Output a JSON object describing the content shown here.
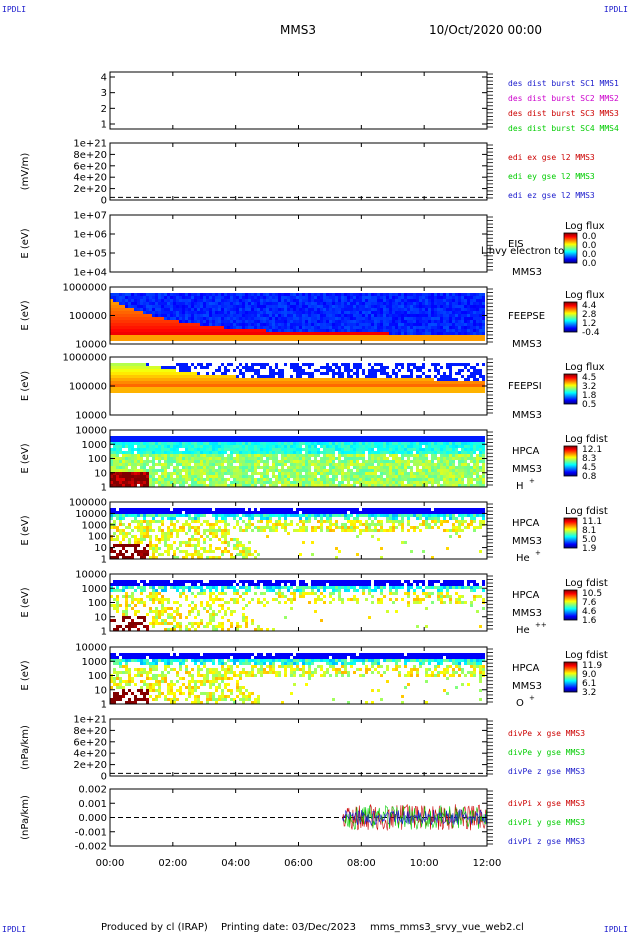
{
  "header": {
    "corner_logo": "IPDLI",
    "spacecraft": "MMS3",
    "date": "10/Oct/2020 00:00"
  },
  "footer": {
    "produced_by": "Produced by cl (IRAP)",
    "printing_date": "Printing date: 03/Dec/2023",
    "script": "mms_mms3_srvy_vue_web2.cl"
  },
  "colors": {
    "blue": "#1a1acc",
    "magenta": "#cc00cc",
    "red": "#cc0000",
    "green": "#00cc00",
    "dashed": "#000000"
  },
  "chart_data": [
    {
      "type": "line",
      "title": "",
      "ylabel": "",
      "y_ticks": [
        "4",
        "3",
        "2",
        "1"
      ],
      "ylim": [
        0.5,
        4.5
      ],
      "legend_placement": "right",
      "series": [
        {
          "name": "des dist burst SC1 MMS1",
          "color": "#1a1acc",
          "values": []
        },
        {
          "name": "des dist burst SC2 MMS2",
          "color": "#cc00cc",
          "values": []
        },
        {
          "name": "des dist burst SC3 MMS3",
          "color": "#cc0000",
          "values": []
        },
        {
          "name": "des dist burst SC4 MMS4",
          "color": "#00cc00",
          "values": []
        }
      ]
    },
    {
      "type": "line",
      "ylabel": "(mV/m)",
      "y_ticks": [
        "1e+21",
        "8e+20",
        "6e+20",
        "4e+20",
        "2e+20",
        "0"
      ],
      "ylim": [
        -5e+19,
        1.05e+21
      ],
      "zero_line": "dashed",
      "series": [
        {
          "name": "edi ex gse l2 MMS3",
          "color": "#cc0000",
          "values": []
        },
        {
          "name": "edi ey gse l2 MMS3",
          "color": "#00cc00",
          "values": []
        },
        {
          "name": "edi ez gse l2 MMS3",
          "color": "#1a1acc",
          "values": []
        }
      ]
    },
    {
      "type": "heatmap",
      "ylabel": "E (eV)",
      "y_ticks": [
        "1e+07",
        "1e+06",
        "1e+05",
        "1e+04"
      ],
      "yscale": "log",
      "ylim": [
        10000,
        10000000
      ],
      "instrument": "EIS",
      "spacecraft": "MMS3",
      "overlay_text": "l_hvy electron to",
      "colorbar_label": "Log flux",
      "colorbar_ticks": [
        "0.0",
        "0.0",
        "0.0",
        "0.0"
      ],
      "values": "empty"
    },
    {
      "type": "heatmap",
      "ylabel": "E (eV)",
      "y_ticks": [
        "1000000",
        "100000",
        "10000"
      ],
      "yscale": "log",
      "ylim": [
        10000,
        1000000
      ],
      "instrument": "FEEPSE",
      "spacecraft": "MMS3",
      "colorbar_label": "Log flux",
      "colorbar_ticks": [
        "4.4",
        "2.8",
        "1.2",
        "-0.4"
      ],
      "colorbar_range": [
        -0.4,
        4.4
      ]
    },
    {
      "type": "heatmap",
      "ylabel": "E (eV)",
      "y_ticks": [
        "1000000",
        "100000",
        "10000"
      ],
      "yscale": "log",
      "ylim": [
        10000,
        1000000
      ],
      "instrument": "FEEPSI",
      "spacecraft": "MMS3",
      "colorbar_label": "Log flux",
      "colorbar_ticks": [
        "4.5",
        "3.2",
        "1.8",
        "0.5"
      ],
      "colorbar_range": [
        0.5,
        4.5
      ]
    },
    {
      "type": "heatmap",
      "ylabel": "E (eV)",
      "y_ticks": [
        "10000",
        "1000",
        "100",
        "10",
        "1"
      ],
      "yscale": "log",
      "ylim": [
        1,
        40000
      ],
      "instrument": "HPCA",
      "spacecraft": "MMS3",
      "species": "H",
      "species_charge": "+",
      "colorbar_label": "Log fdist",
      "colorbar_ticks": [
        "12.1",
        "8.3",
        "4.5",
        "0.8"
      ],
      "colorbar_range": [
        0.8,
        12.1
      ]
    },
    {
      "type": "heatmap",
      "ylabel": "E (eV)",
      "y_ticks": [
        "100000",
        "10000",
        "1000",
        "100",
        "10",
        "1"
      ],
      "yscale": "log",
      "ylim": [
        1,
        100000
      ],
      "instrument": "HPCA",
      "spacecraft": "MMS3",
      "species": "He",
      "species_charge": "+",
      "colorbar_label": "Log fdist",
      "colorbar_ticks": [
        "11.1",
        "8.1",
        "5.0",
        "1.9"
      ],
      "colorbar_range": [
        1.9,
        11.1
      ]
    },
    {
      "type": "heatmap",
      "ylabel": "E (eV)",
      "y_ticks": [
        "10000",
        "1000",
        "100",
        "10",
        "1"
      ],
      "yscale": "log",
      "ylim": [
        1,
        40000
      ],
      "instrument": "HPCA",
      "spacecraft": "MMS3",
      "species": "He",
      "species_charge": "++",
      "colorbar_label": "Log fdist",
      "colorbar_ticks": [
        "10.5",
        "7.6",
        "4.6",
        "1.6"
      ],
      "colorbar_range": [
        1.6,
        10.5
      ]
    },
    {
      "type": "heatmap",
      "ylabel": "E (eV)",
      "y_ticks": [
        "10000",
        "1000",
        "100",
        "10",
        "1"
      ],
      "yscale": "log",
      "ylim": [
        1,
        40000
      ],
      "instrument": "HPCA",
      "spacecraft": "MMS3",
      "species": "O",
      "species_charge": "+",
      "colorbar_label": "Log fdist",
      "colorbar_ticks": [
        "11.9",
        "9.0",
        "6.1",
        "3.2"
      ],
      "colorbar_range": [
        3.2,
        11.9
      ]
    },
    {
      "type": "line",
      "ylabel": "(nPa/km)",
      "y_ticks": [
        "1e+21",
        "8e+20",
        "6e+20",
        "4e+20",
        "2e+20",
        "0"
      ],
      "ylim": [
        -5e+19,
        1.05e+21
      ],
      "zero_line": "dashed",
      "series": [
        {
          "name": "divPe x gse MMS3",
          "color": "#cc0000",
          "values": []
        },
        {
          "name": "divPe y gse MMS3",
          "color": "#00cc00",
          "values": []
        },
        {
          "name": "divPe z gse MMS3",
          "color": "#1a1acc",
          "values": []
        }
      ]
    },
    {
      "type": "line",
      "ylabel": "(nPa/km)",
      "y_ticks": [
        "0.002",
        "0.001",
        "0.000",
        "-0.001",
        "-0.002"
      ],
      "ylim": [
        -0.0026,
        0.0026
      ],
      "zero_line": "dashed",
      "data_start_hour": 7.4,
      "series": [
        {
          "name": "divPi x gse MMS3",
          "color": "#cc0000",
          "amplitude": 0.0012
        },
        {
          "name": "divPi y gse MMS3",
          "color": "#00cc00",
          "amplitude": 0.0011
        },
        {
          "name": "divPi z gse MMS3",
          "color": "#1a1acc",
          "amplitude": 0.0007
        }
      ]
    }
  ],
  "x_axis": {
    "ticks": [
      "00:00",
      "02:00",
      "04:00",
      "06:00",
      "08:00",
      "10:00",
      "12:00"
    ],
    "xlim_hours": [
      0,
      12
    ]
  }
}
